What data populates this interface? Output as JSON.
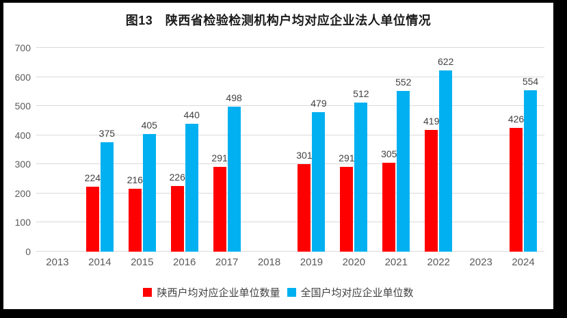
{
  "frame": {
    "border_color": "#000000",
    "background_color": "#ffffff"
  },
  "styles": {
    "grid_color": "#d9d9d9",
    "tick_label_color": "#595959",
    "data_label_color": "#404040",
    "title_color": "#1a1a1a",
    "legend_text_color": "#404040"
  },
  "chart_data": {
    "type": "bar",
    "title": "图13　陕西省检验检测机构户均对应企业法人单位情况",
    "categories": [
      "2013",
      "2014",
      "2015",
      "2016",
      "2017",
      "2018",
      "2019",
      "2020",
      "2021",
      "2022",
      "2023",
      "2024"
    ],
    "series": [
      {
        "key": "shaanxi",
        "name": "陕西户均对应企业单位数量",
        "color": "#FF0000",
        "values": [
          null,
          224,
          216,
          226,
          291,
          null,
          301,
          291,
          305,
          419,
          null,
          426
        ]
      },
      {
        "key": "national",
        "name": "全国户均对应企业单位数",
        "color": "#00B0F0",
        "values": [
          null,
          375,
          405,
          440,
          498,
          null,
          479,
          512,
          552,
          622,
          null,
          554
        ]
      }
    ],
    "ylim": [
      0,
      700
    ],
    "ytick_step": 100,
    "grid": true,
    "value_labels": true,
    "legend_position": "bottom"
  }
}
